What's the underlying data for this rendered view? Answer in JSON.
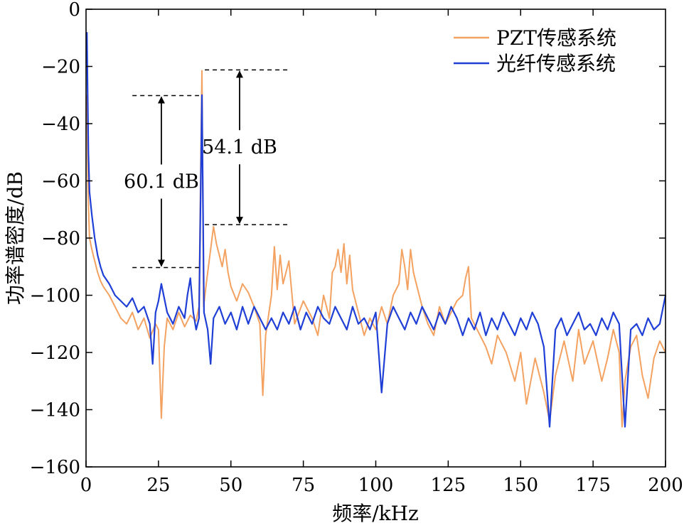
{
  "chart_data": {
    "type": "line",
    "title": "",
    "xlabel": "频率/kHz",
    "ylabel": "功率谱密度/dB",
    "xlim": [
      0,
      200
    ],
    "ylim": [
      -160,
      0
    ],
    "xticks": [
      0,
      25,
      50,
      75,
      100,
      125,
      150,
      175,
      200
    ],
    "yticks": [
      0,
      -20,
      -40,
      -60,
      -80,
      -100,
      -120,
      -140,
      -160
    ],
    "xtick_labels": [
      "0",
      "25",
      "50",
      "75",
      "100",
      "125",
      "150",
      "175",
      "200"
    ],
    "ytick_labels": [
      "0",
      "−20",
      "−40",
      "−60",
      "−80",
      "−100",
      "−120",
      "−140",
      "−160"
    ],
    "grid": false,
    "legend_position": "top-right",
    "series": [
      {
        "name": "PZT传感系统",
        "color": "#F4A261",
        "points": [
          [
            0.3,
            -30
          ],
          [
            0.7,
            -65
          ],
          [
            1.2,
            -80
          ],
          [
            2,
            -84
          ],
          [
            3,
            -88
          ],
          [
            4,
            -92
          ],
          [
            5,
            -95
          ],
          [
            6,
            -97
          ],
          [
            8,
            -100
          ],
          [
            10,
            -104
          ],
          [
            12,
            -108
          ],
          [
            14,
            -110
          ],
          [
            16,
            -106
          ],
          [
            18,
            -112
          ],
          [
            20,
            -108
          ],
          [
            22,
            -115
          ],
          [
            24,
            -110
          ],
          [
            25,
            -112
          ],
          [
            26,
            -143
          ],
          [
            27,
            -118
          ],
          [
            28,
            -108
          ],
          [
            30,
            -112
          ],
          [
            32,
            -106
          ],
          [
            34,
            -111
          ],
          [
            36,
            -107
          ],
          [
            38,
            -109
          ],
          [
            39,
            -104
          ],
          [
            40,
            -21.5
          ],
          [
            40.6,
            -104
          ],
          [
            41.5,
            -96
          ],
          [
            43,
            -84
          ],
          [
            44,
            -76
          ],
          [
            45,
            -82
          ],
          [
            46,
            -86
          ],
          [
            47,
            -90
          ],
          [
            48,
            -84
          ],
          [
            49,
            -92
          ],
          [
            50,
            -97
          ],
          [
            52,
            -102
          ],
          [
            54,
            -96
          ],
          [
            56,
            -99
          ],
          [
            58,
            -104
          ],
          [
            60,
            -110
          ],
          [
            61,
            -135
          ],
          [
            62,
            -114
          ],
          [
            64,
            -100
          ],
          [
            65,
            -83
          ],
          [
            66,
            -98
          ],
          [
            67,
            -86
          ],
          [
            68,
            -96
          ],
          [
            70,
            -88
          ],
          [
            72,
            -110
          ],
          [
            75,
            -102
          ],
          [
            78,
            -108
          ],
          [
            80,
            -114
          ],
          [
            82,
            -100
          ],
          [
            84,
            -108
          ],
          [
            85,
            -92
          ],
          [
            86,
            -90
          ],
          [
            87,
            -84
          ],
          [
            88,
            -92
          ],
          [
            89,
            -82
          ],
          [
            90,
            -96
          ],
          [
            91,
            -86
          ],
          [
            92,
            -98
          ],
          [
            94,
            -106
          ],
          [
            96,
            -114
          ],
          [
            98,
            -108
          ],
          [
            100,
            -112
          ],
          [
            102,
            -104
          ],
          [
            104,
            -110
          ],
          [
            106,
            -100
          ],
          [
            108,
            -96
          ],
          [
            109,
            -84
          ],
          [
            110,
            -90
          ],
          [
            111,
            -98
          ],
          [
            112,
            -84
          ],
          [
            113,
            -92
          ],
          [
            114,
            -96
          ],
          [
            116,
            -104
          ],
          [
            118,
            -110
          ],
          [
            120,
            -114
          ],
          [
            122,
            -104
          ],
          [
            124,
            -110
          ],
          [
            126,
            -106
          ],
          [
            128,
            -102
          ],
          [
            130,
            -100
          ],
          [
            131,
            -94
          ],
          [
            132,
            -90
          ],
          [
            133,
            -108
          ],
          [
            135,
            -112
          ],
          [
            138,
            -118
          ],
          [
            140,
            -124
          ],
          [
            142,
            -114
          ],
          [
            145,
            -120
          ],
          [
            148,
            -130
          ],
          [
            150,
            -120
          ],
          [
            152,
            -138
          ],
          [
            155,
            -122
          ],
          [
            158,
            -134
          ],
          [
            160,
            -144
          ],
          [
            162,
            -128
          ],
          [
            165,
            -116
          ],
          [
            168,
            -130
          ],
          [
            170,
            -112
          ],
          [
            172,
            -124
          ],
          [
            175,
            -116
          ],
          [
            178,
            -130
          ],
          [
            180,
            -122
          ],
          [
            182,
            -112
          ],
          [
            184,
            -120
          ],
          [
            185,
            -146
          ],
          [
            186,
            -130
          ],
          [
            188,
            -118
          ],
          [
            190,
            -114
          ],
          [
            192,
            -128
          ],
          [
            194,
            -136
          ],
          [
            196,
            -122
          ],
          [
            198,
            -116
          ],
          [
            200,
            -120
          ]
        ]
      },
      {
        "name": "光纤传感系统",
        "color": "#1F3FD6",
        "points": [
          [
            0.3,
            -8
          ],
          [
            0.8,
            -50
          ],
          [
            1.2,
            -64
          ],
          [
            2,
            -72
          ],
          [
            3,
            -80
          ],
          [
            4,
            -86
          ],
          [
            5,
            -90
          ],
          [
            6,
            -93
          ],
          [
            8,
            -96
          ],
          [
            10,
            -100
          ],
          [
            12,
            -102
          ],
          [
            14,
            -104
          ],
          [
            16,
            -101
          ],
          [
            18,
            -106
          ],
          [
            20,
            -104
          ],
          [
            22,
            -110
          ],
          [
            23,
            -124
          ],
          [
            24,
            -106
          ],
          [
            25,
            -102
          ],
          [
            26,
            -96
          ],
          [
            28,
            -106
          ],
          [
            30,
            -110
          ],
          [
            32,
            -104
          ],
          [
            34,
            -108
          ],
          [
            35,
            -100
          ],
          [
            36,
            -94
          ],
          [
            37,
            -106
          ],
          [
            38,
            -112
          ],
          [
            39,
            -108
          ],
          [
            40,
            -30
          ],
          [
            40.7,
            -106
          ],
          [
            42,
            -112
          ],
          [
            43,
            -124
          ],
          [
            44,
            -108
          ],
          [
            46,
            -104
          ],
          [
            48,
            -110
          ],
          [
            50,
            -106
          ],
          [
            52,
            -112
          ],
          [
            54,
            -104
          ],
          [
            56,
            -110
          ],
          [
            58,
            -104
          ],
          [
            60,
            -108
          ],
          [
            62,
            -112
          ],
          [
            64,
            -108
          ],
          [
            66,
            -112
          ],
          [
            68,
            -106
          ],
          [
            70,
            -110
          ],
          [
            72,
            -104
          ],
          [
            74,
            -112
          ],
          [
            76,
            -106
          ],
          [
            78,
            -110
          ],
          [
            80,
            -104
          ],
          [
            82,
            -108
          ],
          [
            84,
            -110
          ],
          [
            86,
            -104
          ],
          [
            88,
            -108
          ],
          [
            90,
            -112
          ],
          [
            92,
            -104
          ],
          [
            94,
            -110
          ],
          [
            96,
            -108
          ],
          [
            98,
            -112
          ],
          [
            100,
            -106
          ],
          [
            102,
            -134
          ],
          [
            104,
            -110
          ],
          [
            106,
            -104
          ],
          [
            108,
            -108
          ],
          [
            110,
            -112
          ],
          [
            112,
            -106
          ],
          [
            114,
            -110
          ],
          [
            116,
            -104
          ],
          [
            118,
            -108
          ],
          [
            120,
            -112
          ],
          [
            122,
            -106
          ],
          [
            124,
            -110
          ],
          [
            126,
            -104
          ],
          [
            128,
            -108
          ],
          [
            130,
            -114
          ],
          [
            132,
            -108
          ],
          [
            134,
            -112
          ],
          [
            136,
            -106
          ],
          [
            138,
            -114
          ],
          [
            140,
            -108
          ],
          [
            142,
            -112
          ],
          [
            144,
            -106
          ],
          [
            146,
            -110
          ],
          [
            148,
            -114
          ],
          [
            150,
            -108
          ],
          [
            152,
            -112
          ],
          [
            154,
            -106
          ],
          [
            156,
            -110
          ],
          [
            158,
            -118
          ],
          [
            160,
            -146
          ],
          [
            162,
            -112
          ],
          [
            164,
            -108
          ],
          [
            166,
            -114
          ],
          [
            168,
            -110
          ],
          [
            170,
            -106
          ],
          [
            172,
            -112
          ],
          [
            174,
            -110
          ],
          [
            176,
            -114
          ],
          [
            178,
            -108
          ],
          [
            180,
            -112
          ],
          [
            182,
            -106
          ],
          [
            184,
            -110
          ],
          [
            186,
            -146
          ],
          [
            188,
            -112
          ],
          [
            190,
            -110
          ],
          [
            192,
            -114
          ],
          [
            194,
            -108
          ],
          [
            196,
            -112
          ],
          [
            198,
            -110
          ],
          [
            200,
            -100
          ]
        ]
      }
    ],
    "annotations": [
      {
        "text": "60.1 dB",
        "x_from": 16,
        "x_to": 39,
        "y_top": -30.2,
        "y_bottom": -90.3,
        "arrow_x": 26
      },
      {
        "text": "54.1 dB",
        "x_from": 41,
        "x_to": 70,
        "y_top": -21.2,
        "y_bottom": -75.3,
        "arrow_x": 53
      }
    ]
  }
}
